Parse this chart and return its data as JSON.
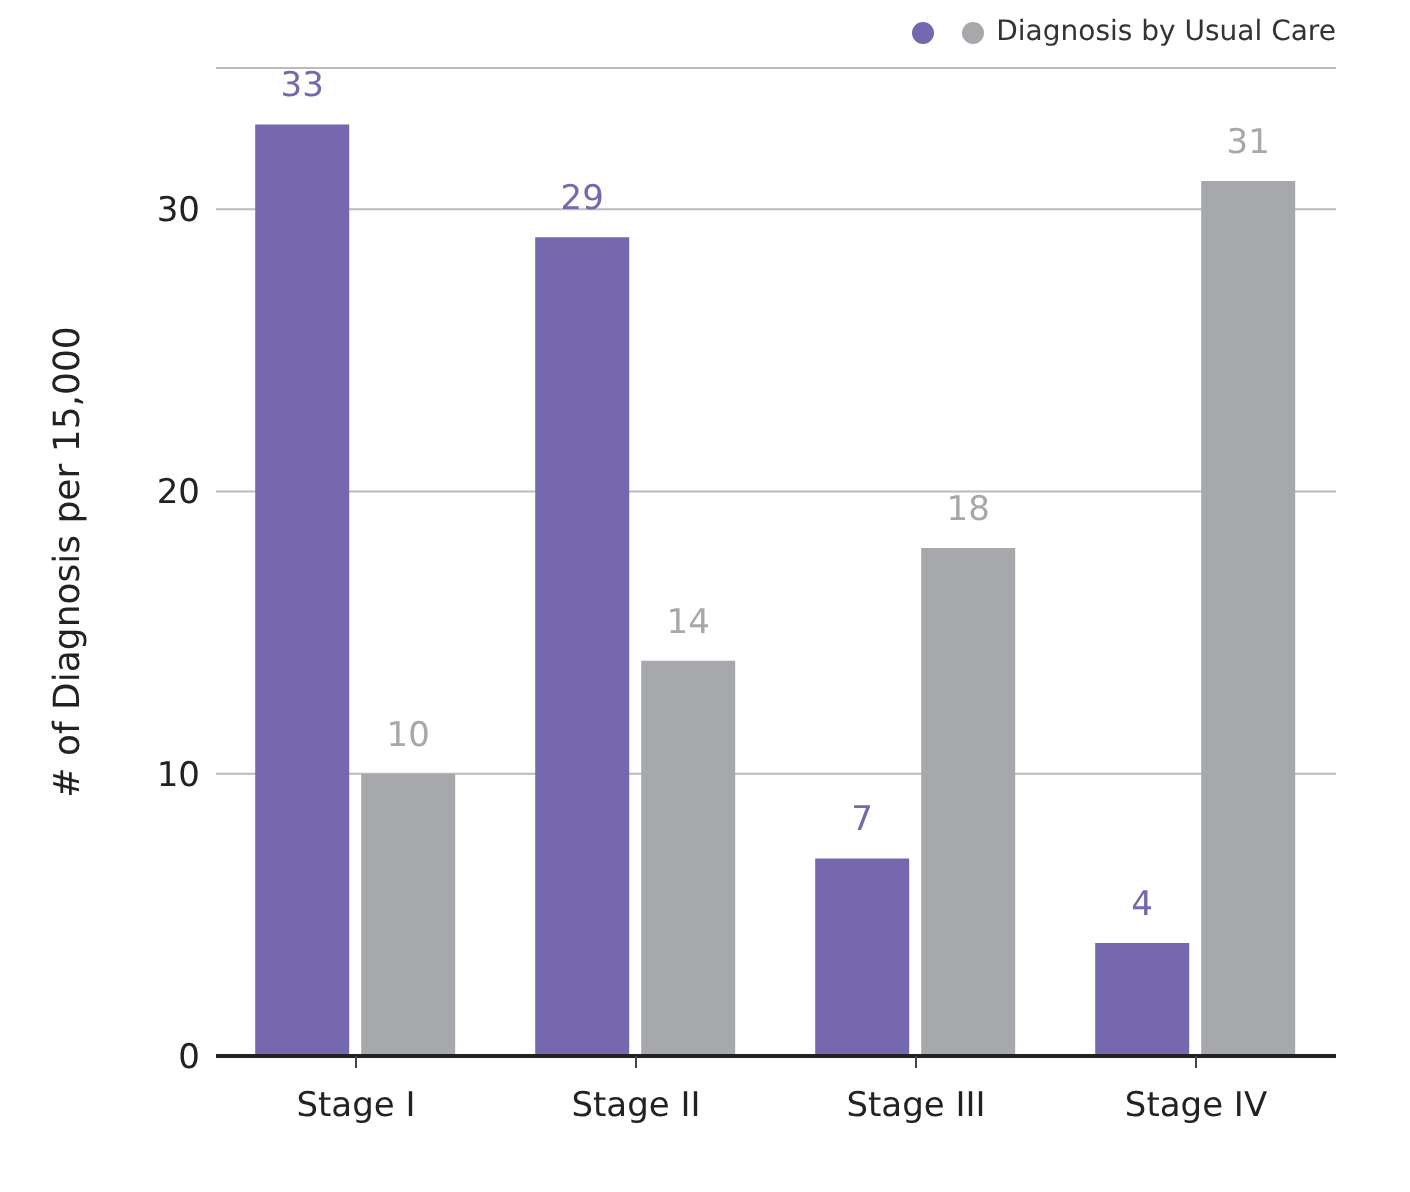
{
  "chart_data": {
    "type": "bar",
    "ylabel": "# of Diagnosis per 15,000",
    "categories": [
      "Stage I",
      "Stage II",
      "Stage III",
      "Stage IV"
    ],
    "series": [
      {
        "color": "#7568ae",
        "values": [
          33,
          29,
          7,
          4
        ]
      },
      {
        "name": "Diagnosis by Usual Care",
        "color": "#a7a8ab",
        "values": [
          10,
          14,
          18,
          31
        ]
      }
    ],
    "ylim": [
      0,
      35
    ],
    "yticks": [
      0,
      10,
      20,
      30
    ],
    "grid": "y",
    "legend": "top right",
    "data_labels": true
  }
}
